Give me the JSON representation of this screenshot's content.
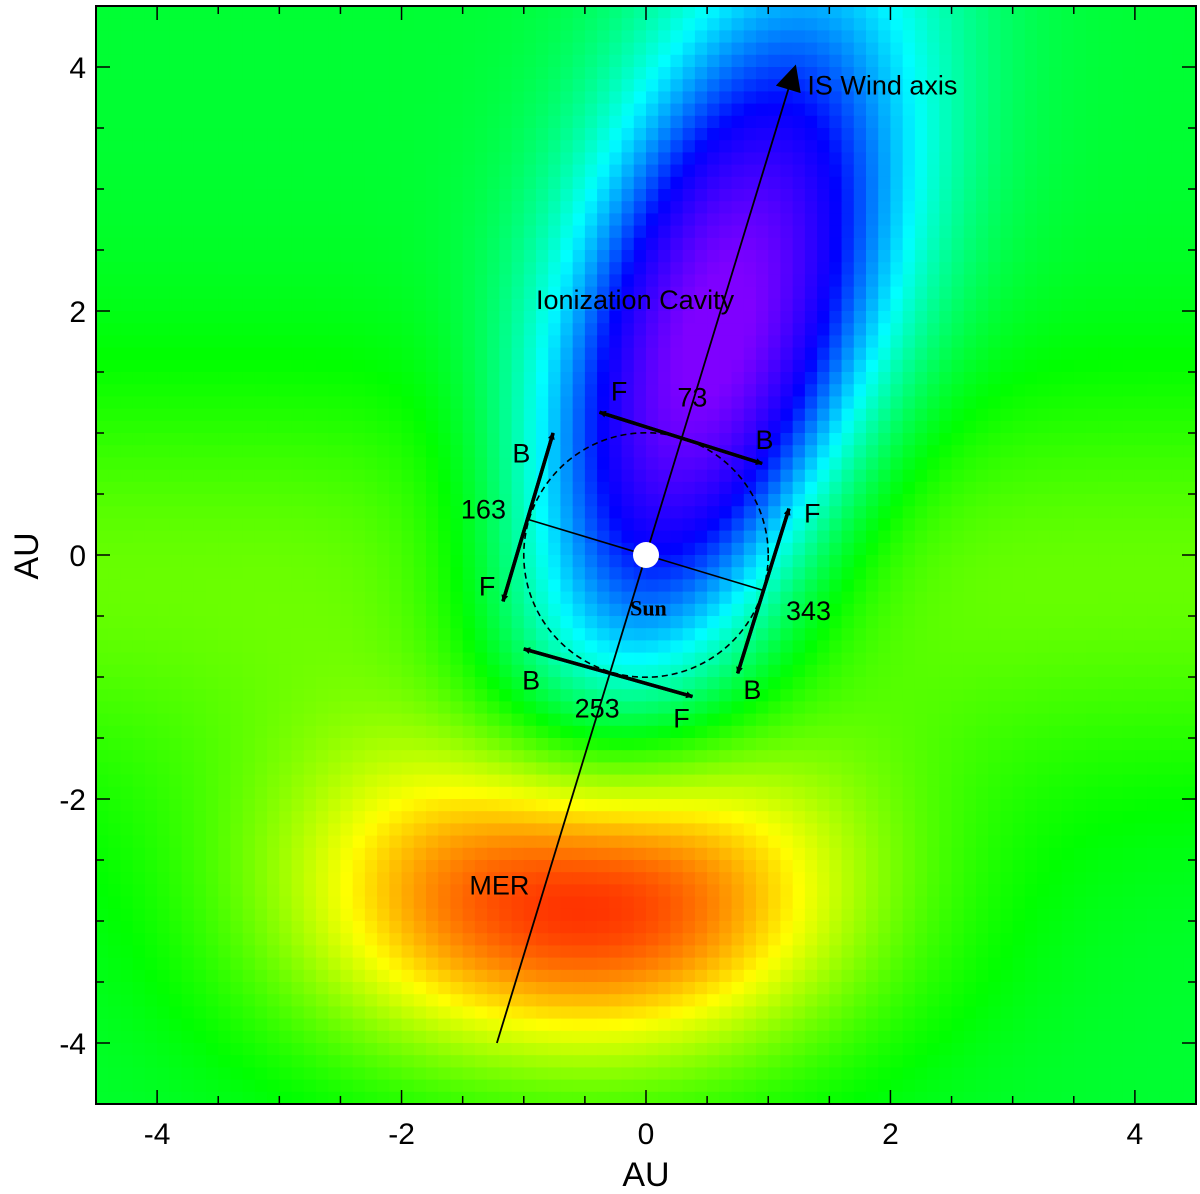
{
  "chart_data": {
    "type": "heatmap",
    "title": "",
    "xlabel": "AU",
    "ylabel": "AU",
    "xlim": [
      -4.5,
      4.5
    ],
    "ylim": [
      -4.5,
      4.5
    ],
    "x_ticks": [
      -4,
      -2,
      0,
      2,
      4
    ],
    "y_ticks": [
      -4,
      -2,
      0,
      2,
      4
    ],
    "x_tick_labels": [
      "-4",
      "-2",
      "0",
      "2",
      "4"
    ],
    "y_tick_labels": [
      "-4",
      "-2",
      "0",
      "2",
      "4"
    ],
    "minor_tick_step": 0.5,
    "grid": false,
    "legend": "none",
    "colormap": [
      "#7f00ff",
      "#0000ff",
      "#00ffff",
      "#00ff00",
      "#ffff00",
      "#ff0000"
    ],
    "field": {
      "cavity_center": [
        0.1,
        1.5
      ],
      "cavity_sigma": [
        0.9,
        2.1
      ],
      "mer_center": [
        -0.6,
        -2.8
      ],
      "mer_sigma": [
        1.6,
        1.0
      ],
      "wind_axis_tilt": 0.26
    },
    "wind_axis": {
      "label": "IS Wind axis",
      "start": [
        -1.22,
        -4.0
      ],
      "end": [
        1.22,
        4.0
      ],
      "label_pos": [
        1.32,
        3.85
      ]
    },
    "sun": {
      "label": "Sun",
      "position": [
        0,
        0
      ],
      "label_pos": [
        0.02,
        -0.43
      ]
    },
    "earth_orbit": {
      "radius": 1.0
    },
    "perpendicular_line": {
      "start": [
        -0.96,
        0.29
      ],
      "end": [
        0.96,
        -0.29
      ]
    },
    "cavity_label": {
      "text": "Ionization Cavity",
      "pos": [
        -0.9,
        2.1
      ]
    },
    "mer_label": {
      "text": "MER",
      "pos": [
        -1.2,
        -2.7
      ]
    },
    "orbit_positions": [
      {
        "angle": "73",
        "angle_pos": [
          0.38,
          1.3
        ],
        "arrow_start": [
          0.95,
          0.75
        ],
        "arrow_end": [
          -0.38,
          1.17
        ],
        "f_label": "F",
        "f_pos": [
          -0.22,
          1.35
        ],
        "b_label": "B",
        "b_pos": [
          0.97,
          0.95
        ]
      },
      {
        "angle": "163",
        "angle_pos": [
          -1.33,
          0.38
        ],
        "arrow_start": [
          -1.17,
          -0.38
        ],
        "arrow_end": [
          -0.76,
          1.0
        ],
        "f_label": "F",
        "f_pos": [
          -1.3,
          -0.25
        ],
        "b_label": "B",
        "b_pos": [
          -1.02,
          0.84
        ]
      },
      {
        "angle": "253",
        "angle_pos": [
          -0.4,
          -1.25
        ],
        "arrow_start": [
          -1.0,
          -0.77
        ],
        "arrow_end": [
          0.38,
          -1.16
        ],
        "f_label": "F",
        "f_pos": [
          0.29,
          -1.33
        ],
        "b_label": "B",
        "b_pos": [
          -0.94,
          -1.02
        ]
      },
      {
        "angle": "343",
        "angle_pos": [
          1.33,
          -0.45
        ],
        "arrow_start": [
          0.75,
          -0.97
        ],
        "arrow_end": [
          1.17,
          0.38
        ],
        "f_label": "F",
        "f_pos": [
          1.36,
          0.35
        ],
        "b_label": "B",
        "b_pos": [
          0.87,
          -1.1
        ]
      }
    ]
  }
}
